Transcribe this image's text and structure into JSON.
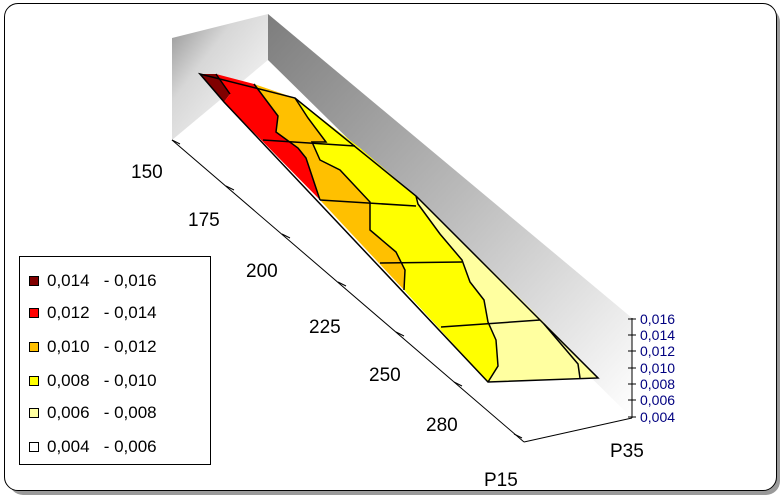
{
  "chart_data": {
    "type": "surface-3d",
    "x_axis": {
      "label": "P15",
      "ticks": [
        "150",
        "175",
        "200",
        "225",
        "250",
        "280"
      ]
    },
    "y_axis": {
      "label": "P35"
    },
    "z_axis": {
      "ticks": [
        "0,016",
        "0,014",
        "0,012",
        "0,010",
        "0,008",
        "0,006",
        "0,004"
      ],
      "range": [
        0.004,
        0.016
      ]
    },
    "legend": [
      {
        "label": "0,014   - 0,016",
        "color": "#800000"
      },
      {
        "label": "0,012   - 0,014",
        "color": "#ff0000"
      },
      {
        "label": "0,010   - 0,012",
        "color": "#ffc000"
      },
      {
        "label": "0,008   - 0,010",
        "color": "#ffff00"
      },
      {
        "label": "0,006   - 0,008",
        "color": "#ffffa0"
      },
      {
        "label": "0,004   - 0,006",
        "color": "#ffffff"
      }
    ],
    "legend_position": "bottom-left",
    "colors": {
      "z_axis_text": "#000080"
    }
  }
}
